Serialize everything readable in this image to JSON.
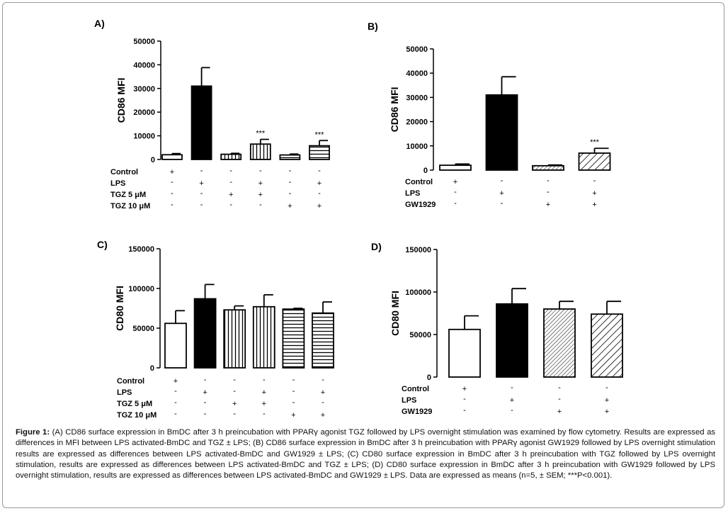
{
  "chart_data": [
    {
      "panel": "A)",
      "type": "bar",
      "ylabel": "CD86 MFI",
      "ylim": [
        0,
        50000
      ],
      "yticks": [
        "0",
        "10000",
        "20000",
        "30000",
        "40000",
        "50000"
      ],
      "values": [
        2000,
        31000,
        2200,
        6500,
        1900,
        5800
      ],
      "errors": [
        500,
        7800,
        400,
        2000,
        400,
        2200
      ],
      "fills": [
        "white",
        "black",
        "vertical",
        "vertical",
        "horizontal",
        "horizontal"
      ],
      "significance": [
        "",
        "",
        "",
        "***",
        "",
        "***"
      ],
      "conditions": [
        {
          "label": "Control",
          "signs": [
            "+",
            "-",
            "-",
            "-",
            "-",
            "-"
          ]
        },
        {
          "label": "LPS",
          "signs": [
            "-",
            "+",
            "-",
            "+",
            "-",
            "+"
          ]
        },
        {
          "label": "TGZ 5  μM",
          "signs": [
            "-",
            "-",
            "+",
            "+",
            "-",
            "-"
          ]
        },
        {
          "label": "TGZ 10 μM",
          "signs": [
            "-",
            "-",
            "-",
            "-",
            "+",
            "+"
          ]
        }
      ]
    },
    {
      "panel": "B)",
      "type": "bar",
      "ylabel": "CD86 MFI",
      "ylim": [
        0,
        50000
      ],
      "yticks": [
        "0",
        "10000",
        "20000",
        "30000",
        "40000",
        "50000"
      ],
      "values": [
        2000,
        31000,
        1800,
        7000
      ],
      "errors": [
        500,
        7500,
        300,
        2000
      ],
      "fills": [
        "white",
        "black",
        "diag-fine",
        "diag-wide"
      ],
      "significance": [
        "",
        "",
        "",
        "***"
      ],
      "conditions": [
        {
          "label": "Control",
          "signs": [
            "+",
            "-",
            "-",
            "-"
          ]
        },
        {
          "label": "LPS",
          "signs": [
            "-",
            "+",
            "-",
            "+"
          ]
        },
        {
          "label": "GW1929",
          "signs": [
            "-",
            "-",
            "+",
            "+"
          ]
        }
      ]
    },
    {
      "panel": "C)",
      "type": "bar",
      "ylabel": "CD80 MFI",
      "ylim": [
        0,
        150000
      ],
      "yticks": [
        "0",
        "50000",
        "100000",
        "150000"
      ],
      "values": [
        56000,
        87000,
        73000,
        77000,
        74000,
        69000
      ],
      "errors": [
        16000,
        18000,
        5000,
        15000,
        1000,
        14000
      ],
      "fills": [
        "white",
        "black",
        "vertical",
        "vertical",
        "horizontal",
        "horizontal"
      ],
      "significance": [
        "",
        "",
        "",
        "",
        "",
        ""
      ],
      "conditions": [
        {
          "label": "Control",
          "signs": [
            "+",
            "-",
            "-",
            "-",
            "-",
            "-"
          ]
        },
        {
          "label": "LPS",
          "signs": [
            "-",
            "+",
            "-",
            "+",
            "-",
            "+"
          ]
        },
        {
          "label": "TGZ 5   μM",
          "signs": [
            "-",
            "-",
            "+",
            "+",
            "-",
            "-"
          ]
        },
        {
          "label": "TGZ 10 μM",
          "signs": [
            "-",
            "-",
            "-",
            "-",
            "+",
            "+"
          ]
        }
      ]
    },
    {
      "panel": "D)",
      "type": "bar",
      "ylabel": "CD80 MFI",
      "ylim": [
        0,
        150000
      ],
      "yticks": [
        "0",
        "50000",
        "100000",
        "150000"
      ],
      "values": [
        56000,
        86000,
        80000,
        74000
      ],
      "errors": [
        16000,
        18000,
        9000,
        15000
      ],
      "fills": [
        "white",
        "black",
        "diag-fine",
        "diag-wide"
      ],
      "significance": [
        "",
        "",
        "",
        ""
      ],
      "conditions": [
        {
          "label": "Control",
          "signs": [
            "+",
            "-",
            "-",
            "-"
          ]
        },
        {
          "label": "LPS",
          "signs": [
            "-",
            "+",
            "-",
            "+"
          ]
        },
        {
          "label": "GW1929",
          "signs": [
            "-",
            "-",
            "+",
            "+"
          ]
        }
      ]
    }
  ],
  "caption": {
    "label": "Figure 1:",
    "text": " (A) CD86 surface expression in BmDC after 3 h preincubation with PPARγ agonist TGZ followed by LPS overnight stimulation was examined by flow cytometry. Results are expressed as differences in MFI between LPS activated-BmDC and TGZ ± LPS; (B) CD86 surface expression in BmDC after 3 h preincubation with PPARγ agonist GW1929 followed by LPS overnight stimulation results are expressed as differences between LPS activated-BmDC and GW1929 ± LPS; (C) CD80 surface expression in BmDC after 3 h preincubation with TGZ followed by LPS overnight stimulation, results are expressed as differences between LPS activated-BmDC and TGZ ± LPS; (D) CD80 surface expression in BmDC after 3 h preincubation with GW1929 followed by LPS overnight stimulation, results are expressed as differences between LPS activated-BmDC and GW1929 ± LPS. Data are expressed as means (n=5, ±  SEM; ***P<0.001)."
  }
}
